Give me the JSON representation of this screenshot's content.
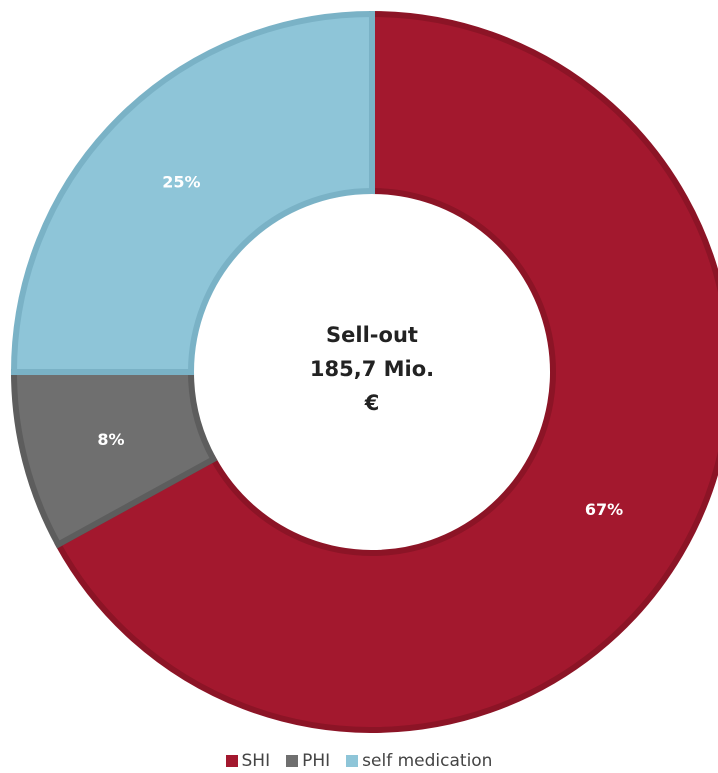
{
  "chart_data": {
    "type": "pie",
    "donut": true,
    "center_label": [
      "Sell-out",
      "185,7 Mio.",
      "€"
    ],
    "slices": [
      {
        "name": "SHI",
        "value": 67,
        "label": "67%",
        "color": "#a3182e",
        "border": "#8c1426"
      },
      {
        "name": "PHI",
        "value": 8,
        "label": "8%",
        "color": "#6f6f6f",
        "border": "#5d5d5d"
      },
      {
        "name": "self medication",
        "value": 25,
        "label": "25%",
        "color": "#8ec5d8",
        "border": "#7ab2c6"
      }
    ],
    "start": "12 o'clock",
    "direction": "clockwise",
    "legend": {
      "position": "bottom"
    }
  }
}
